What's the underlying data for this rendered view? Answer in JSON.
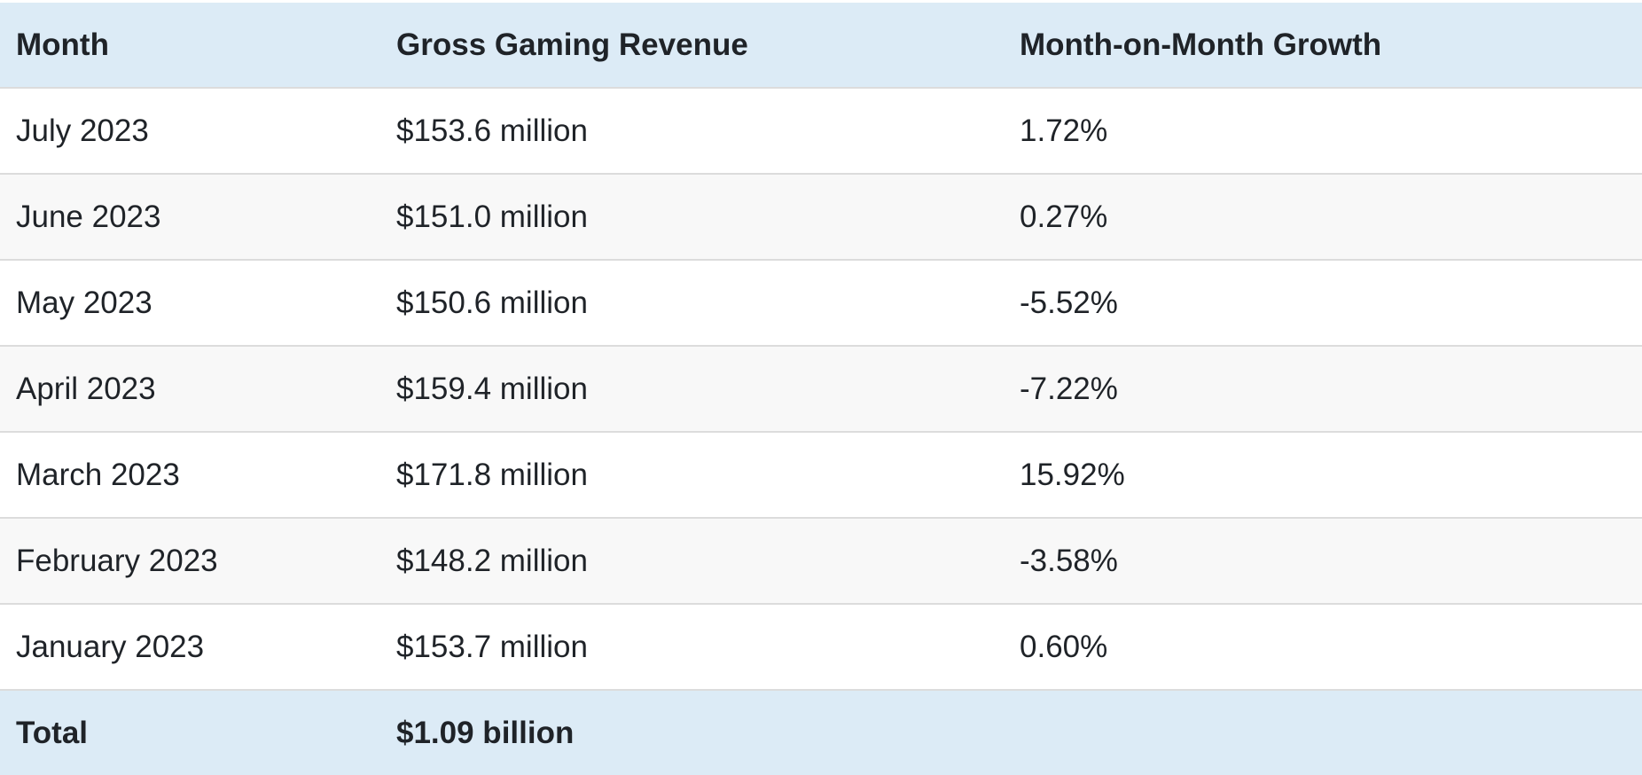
{
  "table": {
    "headers": [
      "Month",
      "Gross Gaming Revenue",
      "Month-on-Month Growth"
    ],
    "rows": [
      {
        "month": "July 2023",
        "revenue": "$153.6 million",
        "growth": "1.72%"
      },
      {
        "month": "June 2023",
        "revenue": "$151.0 million",
        "growth": "0.27%"
      },
      {
        "month": "May 2023",
        "revenue": "$150.6 million",
        "growth": "-5.52%"
      },
      {
        "month": "April 2023",
        "revenue": "$159.4 million",
        "growth": "-7.22%"
      },
      {
        "month": "March 2023",
        "revenue": "$171.8 million",
        "growth": "15.92%"
      },
      {
        "month": "February 2023",
        "revenue": "$148.2 million",
        "growth": "-3.58%"
      },
      {
        "month": "January 2023",
        "revenue": "$153.7 million",
        "growth": "0.60%"
      }
    ],
    "total": {
      "label": "Total",
      "revenue": "$1.09 billion",
      "growth": ""
    }
  },
  "colors": {
    "header_background": "#dcebf6",
    "row_alt_background": "#f8f8f8",
    "row_border": "#dcdcdc",
    "text": "#1f2328"
  }
}
